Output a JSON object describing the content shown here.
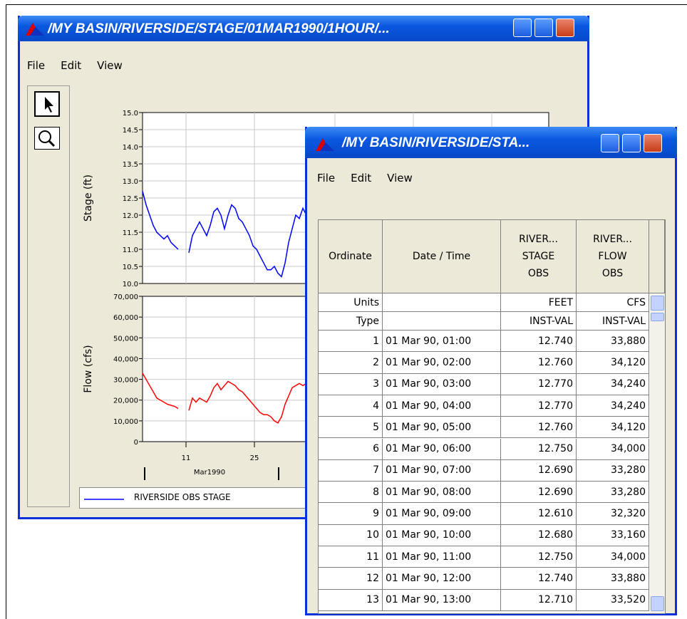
{
  "back_window": {
    "title": "/MY BASIN/RIVERSIDE/STAGE/01MAR1990/1HOUR/...",
    "menu": [
      "File",
      "Edit",
      "View"
    ],
    "legend": "RIVERSIDE OBS STAGE"
  },
  "chart_data": [
    {
      "type": "line",
      "ylabel": "Stage (ft)",
      "ylim": [
        10,
        15
      ],
      "yticks": [
        {
          "value": 10,
          "label": "10.0"
        },
        10.5,
        {
          "value": 11,
          "label": "11.0"
        },
        11.5,
        {
          "value": 12,
          "label": "12.0"
        },
        12.5,
        {
          "value": 13,
          "label": "13.0"
        },
        13.5,
        {
          "value": 14,
          "label": "14.0"
        },
        14.5,
        {
          "value": 15,
          "label": "15.0"
        }
      ],
      "series": [
        {
          "name": "RIVERSIDE OBS STAGE",
          "color": "#0000ff",
          "values": [
            12.7,
            12.3,
            12.0,
            11.7,
            11.5,
            11.4,
            11.3,
            11.4,
            11.2,
            11.1,
            11.0,
            null,
            null,
            10.9,
            11.4,
            11.6,
            11.8,
            11.6,
            11.4,
            11.7,
            12.1,
            12.2,
            12.0,
            11.6,
            12.0,
            12.3,
            12.2,
            11.9,
            11.8,
            11.6,
            11.4,
            11.1,
            11.0,
            10.8,
            10.6,
            10.4,
            10.4,
            10.5,
            10.3,
            10.2,
            10.6,
            11.2,
            11.6,
            12.0,
            11.9,
            12.2,
            12.0,
            12.2
          ]
        }
      ]
    },
    {
      "type": "line",
      "ylabel": "Flow (cfs)",
      "ylim": [
        0,
        70000
      ],
      "yticks": [
        0,
        {
          "value": 10000,
          "label": "10,000"
        },
        {
          "value": 20000,
          "label": "20,000"
        },
        {
          "value": 30000,
          "label": "30,000"
        },
        {
          "value": 40000,
          "label": "40,000"
        },
        {
          "value": 50000,
          "label": "50,000"
        },
        {
          "value": 60000,
          "label": "60,000"
        },
        {
          "value": 70000,
          "label": "70,000"
        }
      ],
      "x_labels": [
        "11",
        "25"
      ],
      "xlabel": "Mar1990",
      "series": [
        {
          "color": "#ff0000",
          "values": [
            33000,
            30000,
            27000,
            24000,
            21000,
            20000,
            19000,
            18000,
            17500,
            17000,
            16000,
            null,
            null,
            15000,
            21000,
            19000,
            21000,
            20000,
            19000,
            22000,
            26000,
            28000,
            25000,
            27000,
            29000,
            28000,
            27000,
            25000,
            24000,
            22000,
            20000,
            18000,
            16000,
            14000,
            13000,
            13000,
            12000,
            10000,
            9000,
            12000,
            18000,
            22000,
            26000,
            27000,
            28000,
            27000,
            28000,
            28000
          ]
        }
      ]
    }
  ],
  "front_window": {
    "title": "/MY BASIN/RIVERSIDE/STA...",
    "menu": [
      "File",
      "Edit",
      "View"
    ],
    "table": {
      "columns": [
        [
          "Ordinate"
        ],
        [
          "Date / Time"
        ],
        [
          "RIVER...",
          "STAGE",
          "OBS"
        ],
        [
          "RIVER...",
          "FLOW",
          "OBS"
        ]
      ],
      "units": {
        "label": "Units",
        "values": [
          "FEET",
          "CFS"
        ]
      },
      "type": {
        "label": "Type",
        "values": [
          "INST-VAL",
          "INST-VAL"
        ]
      },
      "rows": [
        [
          1,
          "01 Mar 90, 01:00",
          "12.740",
          "33,880"
        ],
        [
          2,
          "01 Mar 90, 02:00",
          "12.760",
          "34,120"
        ],
        [
          3,
          "01 Mar 90, 03:00",
          "12.770",
          "34,240"
        ],
        [
          4,
          "01 Mar 90, 04:00",
          "12.770",
          "34,240"
        ],
        [
          5,
          "01 Mar 90, 05:00",
          "12.760",
          "34,120"
        ],
        [
          6,
          "01 Mar 90, 06:00",
          "12.750",
          "34,000"
        ],
        [
          7,
          "01 Mar 90, 07:00",
          "12.690",
          "33,280"
        ],
        [
          8,
          "01 Mar 90, 08:00",
          "12.690",
          "33,280"
        ],
        [
          9,
          "01 Mar 90, 09:00",
          "12.610",
          "32,320"
        ],
        [
          10,
          "01 Mar 90, 10:00",
          "12.680",
          "33,160"
        ],
        [
          11,
          "01 Mar 90, 11:00",
          "12.750",
          "34,000"
        ],
        [
          12,
          "01 Mar 90, 12:00",
          "12.740",
          "33,880"
        ],
        [
          13,
          "01 Mar 90, 13:00",
          "12.710",
          "33,520"
        ]
      ]
    }
  }
}
